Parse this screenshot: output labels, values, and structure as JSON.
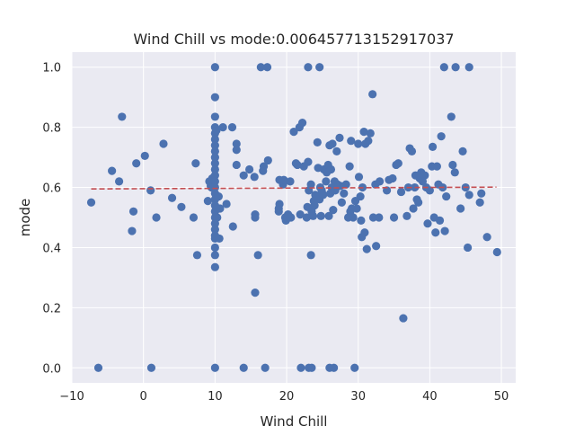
{
  "chart_data": {
    "type": "scatter",
    "title": "Wind Chill vs mode:0.006457713152917037",
    "xlabel": "Wind Chill",
    "ylabel": "mode",
    "xlim": [
      -10,
      52
    ],
    "ylim": [
      -0.05,
      1.05
    ],
    "xticks": [
      -10,
      0,
      10,
      20,
      30,
      40,
      50
    ],
    "xtick_labels": [
      "−10",
      "0",
      "10",
      "20",
      "30",
      "40",
      "50"
    ],
    "yticks": [
      0.0,
      0.2,
      0.4,
      0.6,
      0.8,
      1.0
    ],
    "ytick_labels": [
      "0.0",
      "0.2",
      "0.4",
      "0.6",
      "0.8",
      "1.0"
    ],
    "grid": true,
    "background": "#eaeaf2",
    "point_color": "#4c72b0",
    "trend_color": "#c44e52",
    "trend_line": {
      "x": [
        -7.3,
        49.3
      ],
      "y": [
        0.595,
        0.601
      ]
    },
    "points": [
      [
        -7.3,
        0.55
      ],
      [
        -6.3,
        0.0
      ],
      [
        -4.4,
        0.655
      ],
      [
        -3.4,
        0.62
      ],
      [
        -3.0,
        0.835
      ],
      [
        -1.6,
        0.455
      ],
      [
        -1.4,
        0.52
      ],
      [
        -1.0,
        0.68
      ],
      [
        0.2,
        0.705
      ],
      [
        1.0,
        0.59
      ],
      [
        1.1,
        0.0
      ],
      [
        1.8,
        0.5
      ],
      [
        2.8,
        0.745
      ],
      [
        4.0,
        0.565
      ],
      [
        5.3,
        0.535
      ],
      [
        7.0,
        0.5
      ],
      [
        7.3,
        0.68
      ],
      [
        7.5,
        0.375
      ],
      [
        9.0,
        0.555
      ],
      [
        9.2,
        0.62
      ],
      [
        9.4,
        0.605
      ],
      [
        9.5,
        0.6
      ],
      [
        9.6,
        0.63
      ],
      [
        10.0,
        1.0
      ],
      [
        10.0,
        0.9
      ],
      [
        10.0,
        0.835
      ],
      [
        10.0,
        0.8
      ],
      [
        10.0,
        0.78
      ],
      [
        10.0,
        0.76
      ],
      [
        10.0,
        0.74
      ],
      [
        10.0,
        0.72
      ],
      [
        10.0,
        0.7
      ],
      [
        10.0,
        0.68
      ],
      [
        10.0,
        0.66
      ],
      [
        10.0,
        0.64
      ],
      [
        10.0,
        0.62
      ],
      [
        10.0,
        0.6
      ],
      [
        10.0,
        0.58
      ],
      [
        10.0,
        0.56
      ],
      [
        10.0,
        0.54
      ],
      [
        10.0,
        0.52
      ],
      [
        10.0,
        0.5
      ],
      [
        10.0,
        0.48
      ],
      [
        10.0,
        0.46
      ],
      [
        10.0,
        0.44
      ],
      [
        10.0,
        0.43
      ],
      [
        10.0,
        0.4
      ],
      [
        10.0,
        0.375
      ],
      [
        10.0,
        0.335
      ],
      [
        10.0,
        0.0
      ],
      [
        10.2,
        0.79
      ],
      [
        10.3,
        0.5
      ],
      [
        10.5,
        0.57
      ],
      [
        10.6,
        0.43
      ],
      [
        10.7,
        0.53
      ],
      [
        11.1,
        0.8
      ],
      [
        11.6,
        0.545
      ],
      [
        12.4,
        0.8
      ],
      [
        12.5,
        0.47
      ],
      [
        13.0,
        0.745
      ],
      [
        13.0,
        0.725
      ],
      [
        13.0,
        0.675
      ],
      [
        14.0,
        0.64
      ],
      [
        14.0,
        0.0
      ],
      [
        14.8,
        0.66
      ],
      [
        15.5,
        0.635
      ],
      [
        15.6,
        0.51
      ],
      [
        15.6,
        0.5
      ],
      [
        15.6,
        0.25
      ],
      [
        16.0,
        0.375
      ],
      [
        16.4,
        1.0
      ],
      [
        16.7,
        0.655
      ],
      [
        16.8,
        0.67
      ],
      [
        17.0,
        0.0
      ],
      [
        17.3,
        1.0
      ],
      [
        17.4,
        0.69
      ],
      [
        18.9,
        0.53
      ],
      [
        18.9,
        0.52
      ],
      [
        19.0,
        0.545
      ],
      [
        19.0,
        0.625
      ],
      [
        19.5,
        0.61
      ],
      [
        19.6,
        0.625
      ],
      [
        19.8,
        0.5
      ],
      [
        19.9,
        0.49
      ],
      [
        20.2,
        0.51
      ],
      [
        20.5,
        0.62
      ],
      [
        20.6,
        0.5
      ],
      [
        21.0,
        0.785
      ],
      [
        21.3,
        0.68
      ],
      [
        21.5,
        0.675
      ],
      [
        21.8,
        0.8
      ],
      [
        21.9,
        0.51
      ],
      [
        22.0,
        0.0
      ],
      [
        22.2,
        0.815
      ],
      [
        22.4,
        0.67
      ],
      [
        22.8,
        0.5
      ],
      [
        22.9,
        0.535
      ],
      [
        23.0,
        1.0
      ],
      [
        23.0,
        0.685
      ],
      [
        23.1,
        0.59
      ],
      [
        23.1,
        0.0
      ],
      [
        23.4,
        0.375
      ],
      [
        23.4,
        0.61
      ],
      [
        23.5,
        0.52
      ],
      [
        23.5,
        0.0
      ],
      [
        23.7,
        0.505
      ],
      [
        23.8,
        0.555
      ],
      [
        23.9,
        0.54
      ],
      [
        24.0,
        0.575
      ],
      [
        24.3,
        0.75
      ],
      [
        24.4,
        0.665
      ],
      [
        24.6,
        1.0
      ],
      [
        24.6,
        0.56
      ],
      [
        24.7,
        0.6
      ],
      [
        24.8,
        0.505
      ],
      [
        24.9,
        0.59
      ],
      [
        25.0,
        0.58
      ],
      [
        25.1,
        0.575
      ],
      [
        25.2,
        0.66
      ],
      [
        25.5,
        0.62
      ],
      [
        25.6,
        0.65
      ],
      [
        25.8,
        0.675
      ],
      [
        25.9,
        0.505
      ],
      [
        26.0,
        0.74
      ],
      [
        26.0,
        0.0
      ],
      [
        26.1,
        0.58
      ],
      [
        26.2,
        0.66
      ],
      [
        26.3,
        0.6
      ],
      [
        26.4,
        0.745
      ],
      [
        26.5,
        0.525
      ],
      [
        26.6,
        0.0
      ],
      [
        26.7,
        0.62
      ],
      [
        26.8,
        0.59
      ],
      [
        27.0,
        0.72
      ],
      [
        27.1,
        0.61
      ],
      [
        27.4,
        0.765
      ],
      [
        27.5,
        0.605
      ],
      [
        27.7,
        0.55
      ],
      [
        28.0,
        0.58
      ],
      [
        28.3,
        0.61
      ],
      [
        28.6,
        0.5
      ],
      [
        28.8,
        0.67
      ],
      [
        28.9,
        0.52
      ],
      [
        29.0,
        0.755
      ],
      [
        29.1,
        0.53
      ],
      [
        29.3,
        0.5
      ],
      [
        29.5,
        0.0
      ],
      [
        29.6,
        0.555
      ],
      [
        29.8,
        0.53
      ],
      [
        30.0,
        0.745
      ],
      [
        30.1,
        0.635
      ],
      [
        30.3,
        0.57
      ],
      [
        30.4,
        0.49
      ],
      [
        30.5,
        0.435
      ],
      [
        30.6,
        0.6
      ],
      [
        30.8,
        0.785
      ],
      [
        30.9,
        0.45
      ],
      [
        31.0,
        0.745
      ],
      [
        31.2,
        0.395
      ],
      [
        31.4,
        0.755
      ],
      [
        31.7,
        0.78
      ],
      [
        32.0,
        0.91
      ],
      [
        32.1,
        0.5
      ],
      [
        32.4,
        0.61
      ],
      [
        32.5,
        0.405
      ],
      [
        32.9,
        0.5
      ],
      [
        33.0,
        0.62
      ],
      [
        34.0,
        0.59
      ],
      [
        34.3,
        0.625
      ],
      [
        34.8,
        0.63
      ],
      [
        35.0,
        0.5
      ],
      [
        35.3,
        0.675
      ],
      [
        35.6,
        0.68
      ],
      [
        36.0,
        0.585
      ],
      [
        36.3,
        0.165
      ],
      [
        36.8,
        0.505
      ],
      [
        37.0,
        0.6
      ],
      [
        37.2,
        0.73
      ],
      [
        37.5,
        0.72
      ],
      [
        37.7,
        0.53
      ],
      [
        37.9,
        0.6
      ],
      [
        38.0,
        0.64
      ],
      [
        38.2,
        0.56
      ],
      [
        38.4,
        0.55
      ],
      [
        38.6,
        0.63
      ],
      [
        38.8,
        0.65
      ],
      [
        39.0,
        0.62
      ],
      [
        39.3,
        0.64
      ],
      [
        39.5,
        0.6
      ],
      [
        39.7,
        0.48
      ],
      [
        40.0,
        0.59
      ],
      [
        40.3,
        0.67
      ],
      [
        40.4,
        0.735
      ],
      [
        40.6,
        0.5
      ],
      [
        40.8,
        0.45
      ],
      [
        41.0,
        0.67
      ],
      [
        41.2,
        0.61
      ],
      [
        41.4,
        0.49
      ],
      [
        41.6,
        0.77
      ],
      [
        41.8,
        0.6
      ],
      [
        42.0,
        1.0
      ],
      [
        42.1,
        0.455
      ],
      [
        42.3,
        0.57
      ],
      [
        43.0,
        0.835
      ],
      [
        43.2,
        0.675
      ],
      [
        43.5,
        0.65
      ],
      [
        43.6,
        1.0
      ],
      [
        44.3,
        0.53
      ],
      [
        44.6,
        0.72
      ],
      [
        45.0,
        0.6
      ],
      [
        45.5,
        1.0
      ],
      [
        45.3,
        0.4
      ],
      [
        45.5,
        0.575
      ],
      [
        47.0,
        0.55
      ],
      [
        47.2,
        0.58
      ],
      [
        48.0,
        0.435
      ],
      [
        49.4,
        0.385
      ]
    ]
  }
}
